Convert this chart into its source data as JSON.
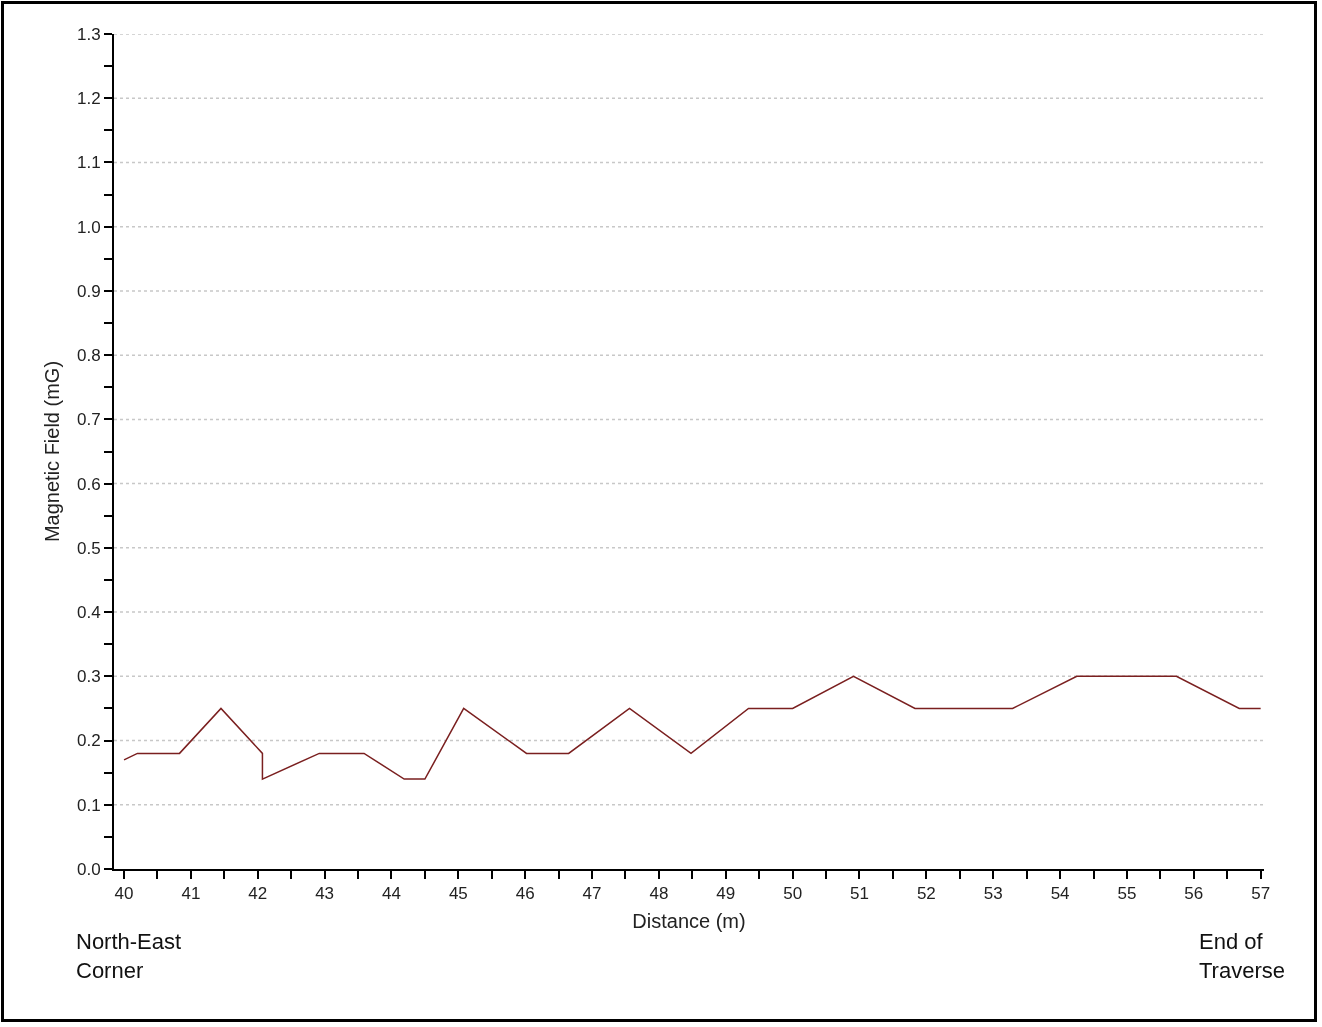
{
  "chart_data": {
    "type": "line",
    "xlabel": "Distance (m)",
    "ylabel": "Magnetic Field (mG)",
    "annotations": [
      "North-East\nCorner",
      "End of\nTraverse"
    ],
    "x": [
      40,
      40.2,
      40.83,
      41.45,
      42.07,
      42.07,
      42.92,
      43.59,
      44.19,
      44.5,
      45.08,
      46.02,
      46.65,
      47.56,
      48.48,
      49.34,
      50,
      50.91,
      51.83,
      53.29,
      54.25,
      55.74,
      56.68,
      57
    ],
    "series": [
      {
        "color": "#7a1f1f",
        "values": [
          0.17,
          0.18,
          0.18,
          0.25,
          0.18,
          0.14,
          0.18,
          0.18,
          0.14,
          0.14,
          0.25,
          0.18,
          0.18,
          0.25,
          0.18,
          0.25,
          0.25,
          0.3,
          0.25,
          0.25,
          0.3,
          0.3,
          0.25,
          0.25
        ]
      }
    ],
    "xlim": [
      39.85,
      57.05
    ],
    "ylim": [
      0,
      1.3
    ],
    "xticks": [
      40,
      {
        "value": 40.5,
        "label": null
      },
      41,
      {
        "value": 41.5,
        "label": null
      },
      42,
      {
        "value": 42.5,
        "label": null
      },
      43,
      {
        "value": 43.5,
        "label": null
      },
      44,
      {
        "value": 44.5,
        "label": null
      },
      45,
      {
        "value": 45.5,
        "label": null
      },
      46,
      {
        "value": 46.5,
        "label": null
      },
      47,
      {
        "value": 47.5,
        "label": null
      },
      48,
      {
        "value": 48.5,
        "label": null
      },
      49,
      {
        "value": 49.5,
        "label": null
      },
      50,
      {
        "value": 50.5,
        "label": null
      },
      51,
      {
        "value": 51.5,
        "label": null
      },
      52,
      {
        "value": 52.5,
        "label": null
      },
      53,
      {
        "value": 53.5,
        "label": null
      },
      54,
      {
        "value": 54.5,
        "label": null
      },
      55,
      {
        "value": 55.5,
        "label": null
      },
      56,
      {
        "value": 56.5,
        "label": null
      },
      57
    ],
    "yticks": [
      {
        "value": 0,
        "label": "0.0"
      },
      {
        "value": 0.05,
        "label": null
      },
      0.1,
      {
        "value": 0.15,
        "label": null
      },
      0.2,
      {
        "value": 0.25,
        "label": null
      },
      0.3,
      {
        "value": 0.35,
        "label": null
      },
      0.4,
      {
        "value": 0.45,
        "label": null
      },
      0.5,
      {
        "value": 0.55,
        "label": null
      },
      0.6,
      {
        "value": 0.65,
        "label": null
      },
      0.7,
      {
        "value": 0.75,
        "label": null
      },
      0.8,
      {
        "value": 0.85,
        "label": null
      },
      0.9,
      {
        "value": 0.95,
        "label": null
      },
      {
        "value": 1,
        "label": "1.0"
      },
      {
        "value": 1.05,
        "label": null
      },
      1.1,
      {
        "value": 1.15,
        "label": null
      },
      1.2,
      {
        "value": 1.25,
        "label": null
      },
      1.3
    ],
    "grid": "y",
    "marker": "none",
    "line_style": "solid"
  }
}
